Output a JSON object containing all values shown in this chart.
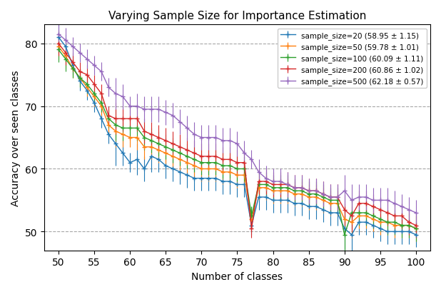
{
  "title": "Varying Sample Size for Importance Estimation",
  "xlabel": "Number of classes",
  "ylabel": "Accuracy over seen classes",
  "xlim": [
    48,
    102
  ],
  "ylim": [
    47,
    83
  ],
  "xticks": [
    50,
    55,
    60,
    65,
    70,
    75,
    80,
    85,
    90,
    95,
    100
  ],
  "yticks": [
    50,
    60,
    70,
    80
  ],
  "series": [
    {
      "label": "sample_size=20 (58.95 ± 1.15)",
      "color": "#1f77b4",
      "mean": [
        81.0,
        79.5,
        76.5,
        74.0,
        72.5,
        70.5,
        68.0,
        65.5,
        64.0,
        62.5,
        61.0,
        61.5,
        60.0,
        62.0,
        61.5,
        60.5,
        60.0,
        59.5,
        59.0,
        58.5,
        58.5,
        58.5,
        58.5,
        58.0,
        58.0,
        57.5,
        57.5,
        51.0,
        55.5,
        55.5,
        55.0,
        55.0,
        55.0,
        54.5,
        54.5,
        54.0,
        54.0,
        53.5,
        53.0,
        53.0,
        50.5,
        49.5,
        51.5,
        51.5,
        51.0,
        50.5,
        50.0,
        50.0,
        50.0,
        50.0,
        49.5
      ],
      "std": [
        2.5,
        2.0,
        1.5,
        1.5,
        1.5,
        1.5,
        1.5,
        1.5,
        3.5,
        2.0,
        1.5,
        2.5,
        2.0,
        2.5,
        2.0,
        2.0,
        2.0,
        2.0,
        2.0,
        2.0,
        2.0,
        2.0,
        2.0,
        2.0,
        2.0,
        2.0,
        2.0,
        1.5,
        2.0,
        2.0,
        2.0,
        2.0,
        2.0,
        2.0,
        2.0,
        2.0,
        2.0,
        2.0,
        2.0,
        2.0,
        3.5,
        3.5,
        2.0,
        2.0,
        2.0,
        2.0,
        2.0,
        2.0,
        2.0,
        2.0,
        2.0
      ]
    },
    {
      "label": "sample_size=50 (59.78 ± 1.01)",
      "color": "#ff7f0e",
      "mean": [
        79.5,
        78.0,
        76.0,
        74.5,
        73.0,
        71.5,
        70.0,
        67.0,
        66.0,
        65.5,
        65.0,
        65.0,
        63.5,
        63.5,
        63.0,
        62.5,
        62.0,
        61.5,
        61.0,
        60.5,
        60.0,
        60.0,
        60.0,
        59.5,
        59.5,
        59.0,
        59.0,
        52.0,
        57.0,
        57.0,
        56.5,
        56.5,
        56.5,
        56.0,
        56.0,
        55.5,
        55.5,
        55.0,
        54.5,
        54.5,
        52.0,
        51.5,
        52.5,
        52.5,
        52.0,
        51.5,
        51.5,
        51.0,
        51.0,
        51.0,
        50.5
      ],
      "std": [
        2.0,
        2.0,
        1.5,
        1.5,
        1.5,
        1.5,
        1.5,
        1.5,
        2.5,
        2.0,
        1.5,
        2.0,
        2.0,
        2.0,
        2.0,
        2.0,
        2.0,
        2.0,
        2.0,
        2.0,
        2.0,
        2.0,
        2.0,
        2.0,
        2.0,
        2.0,
        2.0,
        1.5,
        2.0,
        2.0,
        2.0,
        2.0,
        2.0,
        2.0,
        2.0,
        2.0,
        2.0,
        2.0,
        2.0,
        2.0,
        2.5,
        2.5,
        2.0,
        2.0,
        2.0,
        2.0,
        2.0,
        2.0,
        2.0,
        2.0,
        2.0
      ]
    },
    {
      "label": "sample_size=100 (60.09 ± 1.11)",
      "color": "#2ca02c",
      "mean": [
        79.0,
        77.5,
        76.0,
        74.5,
        73.5,
        72.0,
        70.5,
        68.0,
        67.0,
        66.5,
        66.5,
        66.5,
        65.0,
        64.5,
        64.0,
        63.5,
        63.0,
        62.5,
        62.0,
        61.5,
        61.0,
        61.0,
        61.0,
        60.5,
        60.5,
        60.0,
        60.0,
        52.5,
        57.5,
        57.5,
        57.0,
        57.0,
        57.0,
        56.5,
        56.5,
        56.0,
        56.0,
        55.5,
        55.0,
        55.0,
        49.5,
        53.0,
        53.0,
        53.0,
        52.5,
        52.0,
        51.5,
        51.5,
        51.0,
        51.0,
        50.5
      ],
      "std": [
        2.0,
        2.0,
        1.5,
        1.5,
        1.5,
        1.5,
        1.5,
        1.5,
        2.5,
        2.0,
        1.5,
        2.0,
        2.0,
        2.0,
        2.0,
        2.0,
        2.0,
        2.0,
        2.0,
        2.0,
        2.0,
        2.0,
        2.0,
        2.0,
        2.0,
        2.0,
        2.0,
        1.5,
        2.0,
        2.0,
        2.0,
        2.0,
        2.0,
        2.0,
        2.0,
        2.0,
        2.0,
        2.0,
        2.0,
        2.0,
        3.0,
        2.5,
        2.0,
        2.0,
        2.0,
        2.0,
        2.0,
        2.0,
        2.0,
        2.0,
        2.0
      ]
    },
    {
      "label": "sample_size=200 (60.86 ± 1.02)",
      "color": "#d62728",
      "mean": [
        80.0,
        78.5,
        77.0,
        75.5,
        75.0,
        73.5,
        72.0,
        68.5,
        68.0,
        68.0,
        68.0,
        68.0,
        66.0,
        65.5,
        65.0,
        64.5,
        64.0,
        63.5,
        63.0,
        62.5,
        62.0,
        62.0,
        62.0,
        61.5,
        61.5,
        61.0,
        61.0,
        50.5,
        58.0,
        58.0,
        57.5,
        57.5,
        57.5,
        57.0,
        57.0,
        56.5,
        56.5,
        56.0,
        55.5,
        55.5,
        53.5,
        52.5,
        54.5,
        54.5,
        54.0,
        53.5,
        53.0,
        52.5,
        52.5,
        51.5,
        51.0
      ],
      "std": [
        2.0,
        2.0,
        1.5,
        1.5,
        1.5,
        1.5,
        1.5,
        1.5,
        2.5,
        2.0,
        1.5,
        2.0,
        2.0,
        2.0,
        2.0,
        2.0,
        2.0,
        2.0,
        2.0,
        2.0,
        2.0,
        2.0,
        2.0,
        2.0,
        2.0,
        2.0,
        2.0,
        1.5,
        2.0,
        2.0,
        2.0,
        2.0,
        2.0,
        2.0,
        2.0,
        2.0,
        2.0,
        2.0,
        2.0,
        2.0,
        2.5,
        2.5,
        2.0,
        2.0,
        2.0,
        2.0,
        2.0,
        2.0,
        2.0,
        2.0,
        2.0
      ]
    },
    {
      "label": "sample_size=500 (62.18 ± 0.57)",
      "color": "#9467bd",
      "mean": [
        81.5,
        80.5,
        79.5,
        78.5,
        77.5,
        76.5,
        75.5,
        73.0,
        72.0,
        71.5,
        70.0,
        70.0,
        69.5,
        69.5,
        69.5,
        69.0,
        68.5,
        67.5,
        66.5,
        65.5,
        65.0,
        65.0,
        65.0,
        64.5,
        64.5,
        64.0,
        62.5,
        61.5,
        59.5,
        58.5,
        58.0,
        58.0,
        57.5,
        57.0,
        57.0,
        56.5,
        56.5,
        56.0,
        55.5,
        55.5,
        56.5,
        55.0,
        55.5,
        55.5,
        55.0,
        55.0,
        55.0,
        54.5,
        54.0,
        53.5,
        53.0
      ],
      "std": [
        2.0,
        2.0,
        1.5,
        1.5,
        1.5,
        1.5,
        1.5,
        1.5,
        2.5,
        2.0,
        1.5,
        2.0,
        2.0,
        2.0,
        2.0,
        2.0,
        2.0,
        2.0,
        2.0,
        2.0,
        2.0,
        2.0,
        2.0,
        2.0,
        2.0,
        2.0,
        2.0,
        1.5,
        2.0,
        2.0,
        2.0,
        2.0,
        2.0,
        2.0,
        2.0,
        2.0,
        2.0,
        2.0,
        2.0,
        2.0,
        2.5,
        2.5,
        2.0,
        2.0,
        2.0,
        2.0,
        2.0,
        2.0,
        2.0,
        2.0,
        2.0
      ]
    }
  ]
}
